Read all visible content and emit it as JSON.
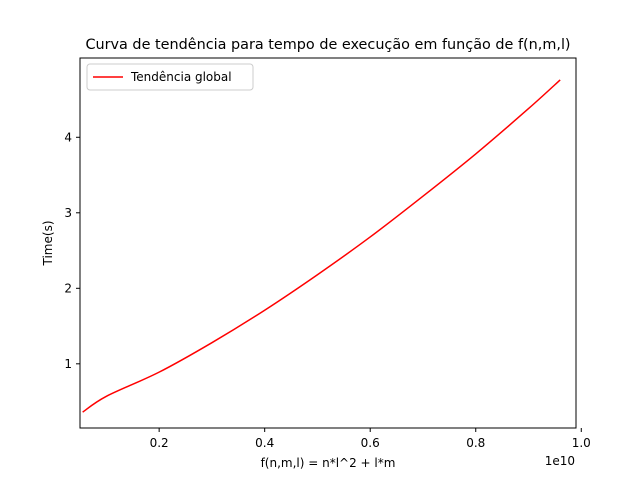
{
  "chart_data": {
    "type": "line",
    "title": "Curva de tendência para tempo de execução em função de f(n,m,l)",
    "xlabel": "f(n,m,l) = n*l^2 + l*m",
    "ylabel": "Time(s)",
    "x_offset_label": "1e10",
    "xlim": [
      500000000.0,
      9900000000.0
    ],
    "ylim": [
      0.15,
      5.05
    ],
    "x_ticks": [
      2000000000.0,
      4000000000.0,
      6000000000.0,
      8000000000.0,
      10000000000.0
    ],
    "x_tick_labels": [
      "0.2",
      "0.4",
      "0.6",
      "0.8",
      "1.0"
    ],
    "y_ticks": [
      1,
      2,
      3,
      4
    ],
    "y_tick_labels": [
      "1",
      "2",
      "3",
      "4"
    ],
    "grid": false,
    "legend_position": "upper-left",
    "series": [
      {
        "name": "Tendência global",
        "color": "#ff0000",
        "x": [
          550000000.0,
          1000000000.0,
          2000000000.0,
          3000000000.0,
          4000000000.0,
          5000000000.0,
          6000000000.0,
          7000000000.0,
          8000000000.0,
          9000000000.0,
          9600000000.0
        ],
        "y": [
          0.36,
          0.57,
          0.89,
          1.28,
          1.71,
          2.18,
          2.68,
          3.22,
          3.78,
          4.38,
          4.76
        ]
      }
    ]
  }
}
